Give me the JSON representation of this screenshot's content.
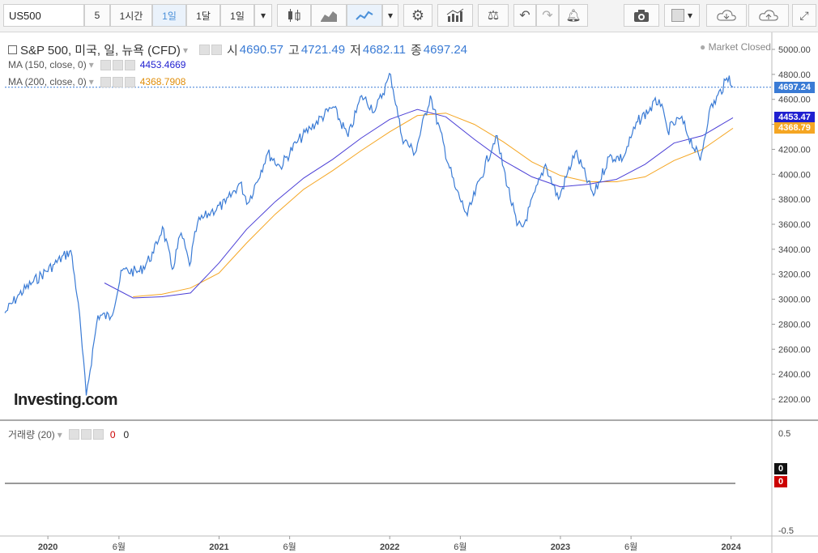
{
  "toolbar": {
    "symbol": "US500",
    "btn_5": "5",
    "btn_1h": "1시간",
    "btn_1d": "1일",
    "btn_1m": "1달",
    "btn_1d_select": "1일"
  },
  "legend": {
    "title": "S&P 500, 미국, 일, 뉴욕 (CFD)",
    "open_label": "시",
    "open": "4690.57",
    "high_label": "고",
    "high": "4721.49",
    "low_label": "저",
    "low": "4682.11",
    "close_label": "종",
    "close": "4697.24",
    "ma150_label": "MA (150, close, 0)",
    "ma150_value": "4453.4669",
    "ma200_label": "MA (200, close, 0)",
    "ma200_value": "4368.7908",
    "volume_label": "거래량 (20)",
    "volume_v1": "0",
    "volume_v2": "0",
    "market_status": "Market Closed",
    "logo": "Investing.com"
  },
  "colors": {
    "price": "#3a7bd5",
    "ma150": "#4b3fd6",
    "ma200": "#f5a623",
    "badge_price": "#3a7bd5",
    "badge_ma150": "#1f1fd0",
    "badge_ma200": "#f5a623"
  },
  "badges": {
    "price": "4697.24",
    "ma150": "4453.47",
    "ma200": "4368.79",
    "vol_black": "0",
    "vol_red": "0"
  },
  "chart_data": {
    "type": "line",
    "title": "S&P 500, 미국, 일, 뉴욕 (CFD)",
    "ylim": [
      2100,
      5100
    ],
    "y_ticks": [
      "5000.00",
      "4800.00",
      "4600.00",
      "4400.00",
      "4200.00",
      "4000.00",
      "3800.00",
      "3600.00",
      "3400.00",
      "3200.00",
      "3000.00",
      "2800.00",
      "2600.00",
      "2400.00",
      "2200.00"
    ],
    "x_ticks": [
      "2020",
      "6월",
      "2021",
      "6월",
      "2022",
      "6월",
      "2023",
      "6월",
      "2024"
    ],
    "volume_ticks": [
      "0.5",
      "-0.5"
    ],
    "series": [
      {
        "name": "",
        "values": [
          [
            "2019-10-01",
            2890
          ],
          [
            "2019-11-01",
            3040
          ],
          [
            "2019-12-01",
            3140
          ],
          [
            "2020-01-15",
            3280
          ],
          [
            "2020-02-19",
            3390
          ],
          [
            "2020-03-06",
            2970
          ],
          [
            "2020-03-23",
            2230
          ],
          [
            "2020-04-17",
            2870
          ],
          [
            "2020-05-15",
            2860
          ],
          [
            "2020-06-08",
            3230
          ],
          [
            "2020-07-15",
            3220
          ],
          [
            "2020-08-14",
            3370
          ],
          [
            "2020-09-02",
            3580
          ],
          [
            "2020-09-23",
            3240
          ],
          [
            "2020-10-12",
            3530
          ],
          [
            "2020-10-30",
            3270
          ],
          [
            "2020-11-16",
            3610
          ],
          [
            "2020-12-15",
            3700
          ],
          [
            "2021-01-15",
            3770
          ],
          [
            "2021-02-15",
            3930
          ],
          [
            "2021-03-04",
            3770
          ],
          [
            "2021-04-15",
            4170
          ],
          [
            "2021-05-12",
            4060
          ],
          [
            "2021-06-15",
            4250
          ],
          [
            "2021-07-15",
            4370
          ],
          [
            "2021-09-02",
            4540
          ],
          [
            "2021-10-04",
            4300
          ],
          [
            "2021-11-02",
            4630
          ],
          [
            "2021-12-01",
            4510
          ],
          [
            "2022-01-03",
            4800
          ],
          [
            "2022-01-27",
            4300
          ],
          [
            "2022-02-24",
            4170
          ],
          [
            "2022-03-29",
            4630
          ],
          [
            "2022-05-20",
            3900
          ],
          [
            "2022-06-16",
            3670
          ],
          [
            "2022-08-16",
            4310
          ],
          [
            "2022-09-30",
            3590
          ],
          [
            "2022-10-13",
            3580
          ],
          [
            "2022-11-30",
            4080
          ],
          [
            "2022-12-28",
            3800
          ],
          [
            "2023-02-02",
            4180
          ],
          [
            "2023-03-13",
            3830
          ],
          [
            "2023-04-15",
            4140
          ],
          [
            "2023-05-15",
            4130
          ],
          [
            "2023-06-15",
            4420
          ],
          [
            "2023-07-31",
            4600
          ],
          [
            "2023-08-18",
            4350
          ],
          [
            "2023-09-15",
            4450
          ],
          [
            "2023-10-27",
            4110
          ],
          [
            "2023-11-15",
            4500
          ],
          [
            "2023-12-28",
            4790
          ],
          [
            "2024-01-05",
            4697
          ]
        ]
      },
      {
        "name": "MA (150, close, 0)",
        "values": [
          [
            "2020-05-01",
            3130
          ],
          [
            "2020-07-01",
            3010
          ],
          [
            "2020-09-01",
            3020
          ],
          [
            "2020-11-01",
            3050
          ],
          [
            "2021-01-01",
            3290
          ],
          [
            "2021-03-01",
            3560
          ],
          [
            "2021-05-01",
            3780
          ],
          [
            "2021-07-01",
            3970
          ],
          [
            "2021-09-01",
            4120
          ],
          [
            "2021-11-01",
            4290
          ],
          [
            "2022-01-01",
            4440
          ],
          [
            "2022-03-01",
            4520
          ],
          [
            "2022-05-01",
            4460
          ],
          [
            "2022-07-01",
            4280
          ],
          [
            "2022-09-01",
            4110
          ],
          [
            "2022-11-01",
            3980
          ],
          [
            "2023-01-01",
            3900
          ],
          [
            "2023-03-01",
            3920
          ],
          [
            "2023-05-01",
            3960
          ],
          [
            "2023-07-01",
            4080
          ],
          [
            "2023-09-01",
            4250
          ],
          [
            "2023-11-01",
            4310
          ],
          [
            "2024-01-05",
            4453
          ]
        ]
      },
      {
        "name": "MA (200, close, 0)",
        "values": [
          [
            "2020-07-01",
            3020
          ],
          [
            "2020-09-01",
            3040
          ],
          [
            "2020-11-01",
            3090
          ],
          [
            "2021-01-01",
            3210
          ],
          [
            "2021-03-01",
            3450
          ],
          [
            "2021-05-01",
            3680
          ],
          [
            "2021-07-01",
            3880
          ],
          [
            "2021-09-01",
            4030
          ],
          [
            "2021-11-01",
            4190
          ],
          [
            "2022-01-01",
            4340
          ],
          [
            "2022-03-01",
            4470
          ],
          [
            "2022-05-01",
            4490
          ],
          [
            "2022-07-01",
            4400
          ],
          [
            "2022-09-01",
            4260
          ],
          [
            "2022-11-01",
            4100
          ],
          [
            "2023-01-01",
            3990
          ],
          [
            "2023-03-01",
            3940
          ],
          [
            "2023-05-01",
            3940
          ],
          [
            "2023-07-01",
            3980
          ],
          [
            "2023-09-01",
            4110
          ],
          [
            "2023-11-01",
            4200
          ],
          [
            "2024-01-05",
            4369
          ]
        ]
      }
    ]
  }
}
